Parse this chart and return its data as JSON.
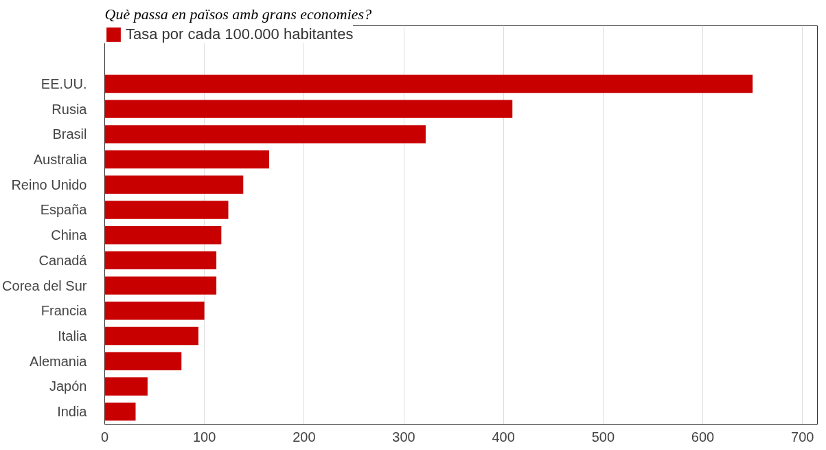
{
  "chart_data": {
    "type": "bar",
    "orientation": "horizontal",
    "title": "Què passa en països amb grans economies?",
    "categories": [
      "EE.UU.",
      "Rusia",
      "Brasil",
      "Australia",
      "Reino Unido",
      "España",
      "China",
      "Canadá",
      "Corea del Sur",
      "Francia",
      "Italia",
      "Alemania",
      "Japón",
      "India"
    ],
    "series": [
      {
        "name": "Tasa por cada 100.000 habitantes",
        "color": "#c80000",
        "values": [
          650,
          409,
          322,
          165,
          139,
          124,
          117,
          112,
          112,
          100,
          94,
          77,
          43,
          31
        ]
      }
    ],
    "xlim": [
      0,
      715
    ],
    "xticks": [
      0,
      100,
      200,
      300,
      400,
      500,
      600,
      700
    ],
    "grid": "x",
    "legend": "top left"
  }
}
